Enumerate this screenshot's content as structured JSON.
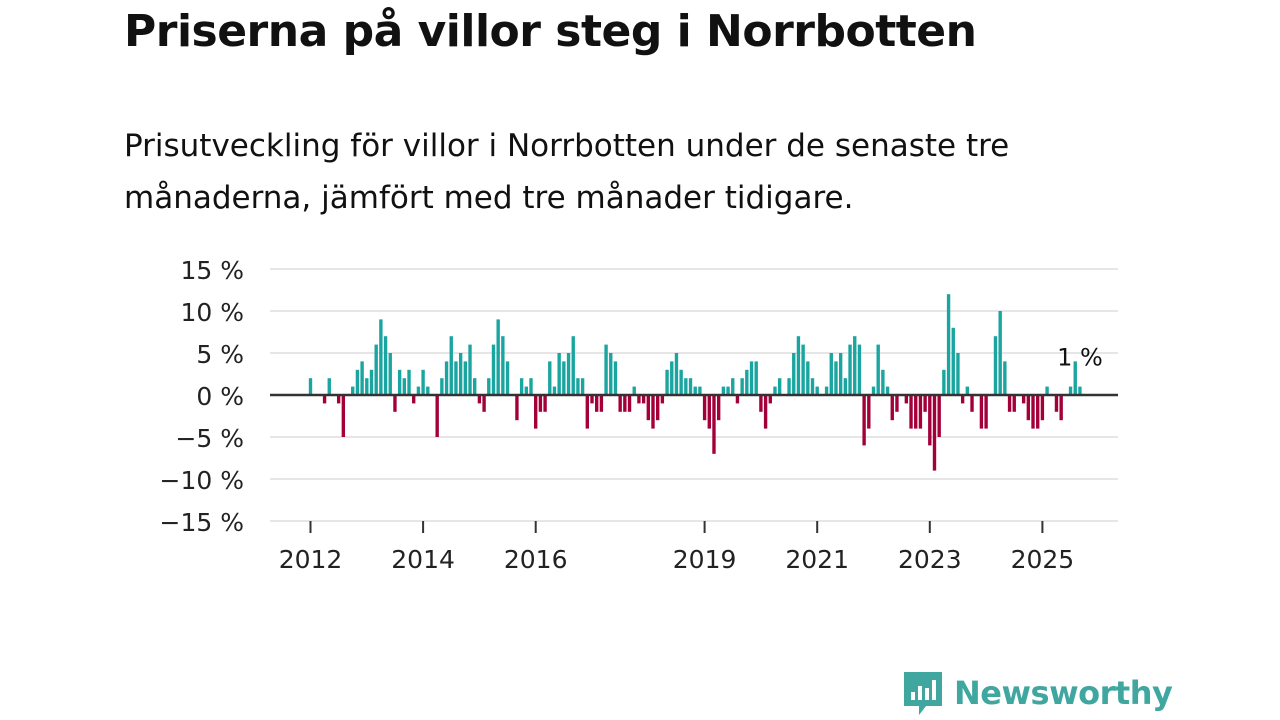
{
  "title": "Priserna på villor steg i Norrbotten",
  "subtitle": "Prisutveckling för villor i Norrbotten under de senaste tre månaderna, jämfört med tre månader tidigare.",
  "brand": {
    "name": "Newsworthy",
    "color": "#3fa6a0"
  },
  "colors": {
    "positive": "#1aa5a0",
    "negative": "#a3003a",
    "grid": "#dddddd",
    "zero": "#333333"
  },
  "chart_data": {
    "type": "bar",
    "title": "Priserna på villor steg i Norrbotten",
    "xlabel": "",
    "ylabel": "",
    "ylim": [
      -15,
      15
    ],
    "y_ticks": [
      15,
      10,
      5,
      0,
      -5,
      -10,
      -15
    ],
    "y_tick_labels": [
      "15 %",
      "10 %",
      "5 %",
      "0 %",
      "−5 %",
      "−10 %",
      "−15 %"
    ],
    "x_ticks": [
      2012,
      2014,
      2016,
      2019,
      2021,
      2023,
      2025
    ],
    "x_tick_labels": [
      "2012",
      "2014",
      "2016",
      "2019",
      "2021",
      "2023",
      "2025"
    ],
    "x_start": 2012,
    "annotation": {
      "text": "1 %",
      "value": 1
    },
    "unit": "%",
    "series": [
      {
        "name": "Prisutveckling",
        "frequency": "monthly",
        "start": "2012-01",
        "values": [
          2,
          0,
          0,
          -1,
          2,
          0,
          -1,
          -5,
          0,
          1,
          3,
          4,
          2,
          3,
          6,
          9,
          7,
          5,
          -2,
          3,
          2,
          3,
          -1,
          1,
          3,
          1,
          0,
          -5,
          2,
          4,
          7,
          4,
          5,
          4,
          6,
          2,
          -1,
          -2,
          2,
          6,
          9,
          7,
          4,
          0,
          -3,
          2,
          1,
          2,
          -4,
          -2,
          -2,
          4,
          1,
          5,
          4,
          5,
          7,
          2,
          2,
          -4,
          -1,
          -2,
          -2,
          6,
          5,
          4,
          -2,
          -2,
          -2,
          1,
          -1,
          -1,
          -3,
          -4,
          -3,
          -1,
          3,
          4,
          5,
          3,
          2,
          2,
          1,
          1,
          -3,
          -4,
          -7,
          -3,
          1,
          1,
          2,
          -1,
          2,
          3,
          4,
          4,
          -2,
          -4,
          -1,
          1,
          2,
          0,
          2,
          5,
          7,
          6,
          4,
          2,
          1,
          0,
          1,
          5,
          4,
          5,
          2,
          6,
          7,
          6,
          -6,
          -4,
          1,
          6,
          3,
          1,
          -3,
          -2,
          0,
          -1,
          -4,
          -4,
          -4,
          -2,
          -6,
          -9,
          -5,
          3,
          12,
          8,
          5,
          -1,
          1,
          -2,
          0,
          -4,
          -4,
          0,
          7,
          10,
          4,
          -2,
          -2,
          0,
          -1,
          -3,
          -4,
          -4,
          -3,
          1,
          0,
          -2,
          -3,
          0,
          1,
          4,
          1
        ]
      }
    ]
  }
}
